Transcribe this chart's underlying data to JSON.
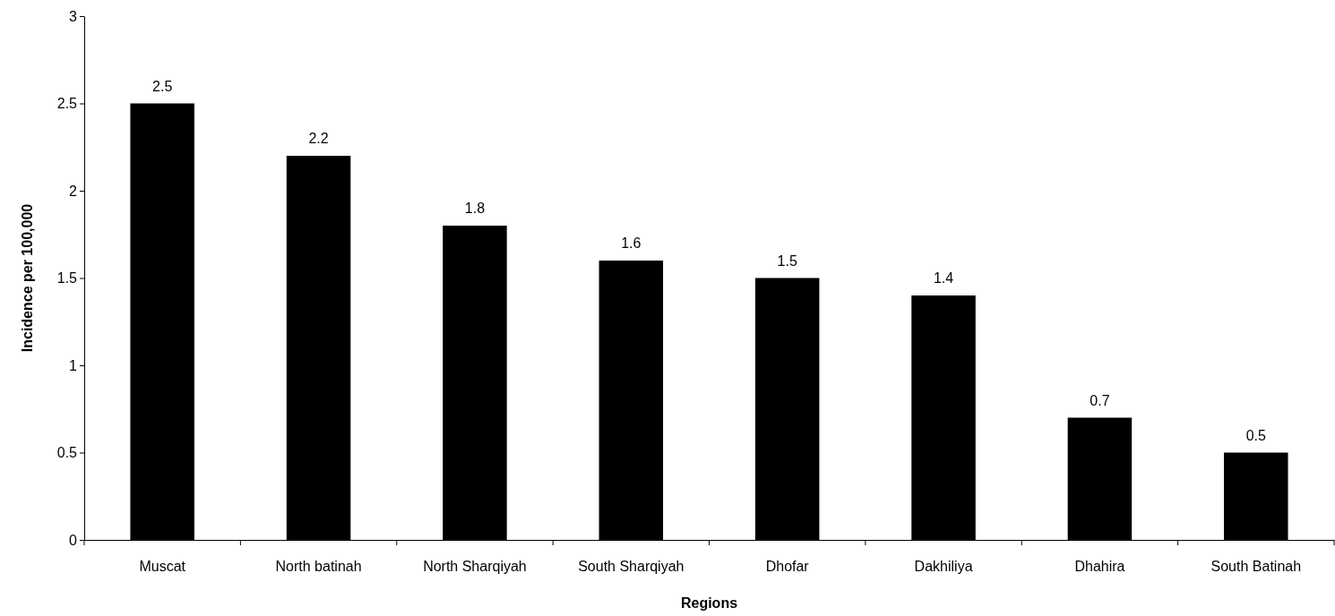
{
  "chart_data": {
    "type": "bar",
    "xlabel": "Regions",
    "ylabel": "Incidence per 100,000",
    "categories": [
      "Muscat",
      "North batinah",
      "North Sharqiyah",
      "South Sharqiyah",
      "Dhofar",
      "Dakhiliya",
      "Dhahira",
      "South Batinah"
    ],
    "values": [
      2.5,
      2.2,
      1.8,
      1.6,
      1.5,
      1.4,
      0.7,
      0.5
    ],
    "color": "#000000",
    "ylim": [
      0,
      3
    ],
    "yticks": [
      0,
      0.5,
      1,
      1.5,
      2,
      2.5,
      3
    ],
    "data_labels": true
  }
}
